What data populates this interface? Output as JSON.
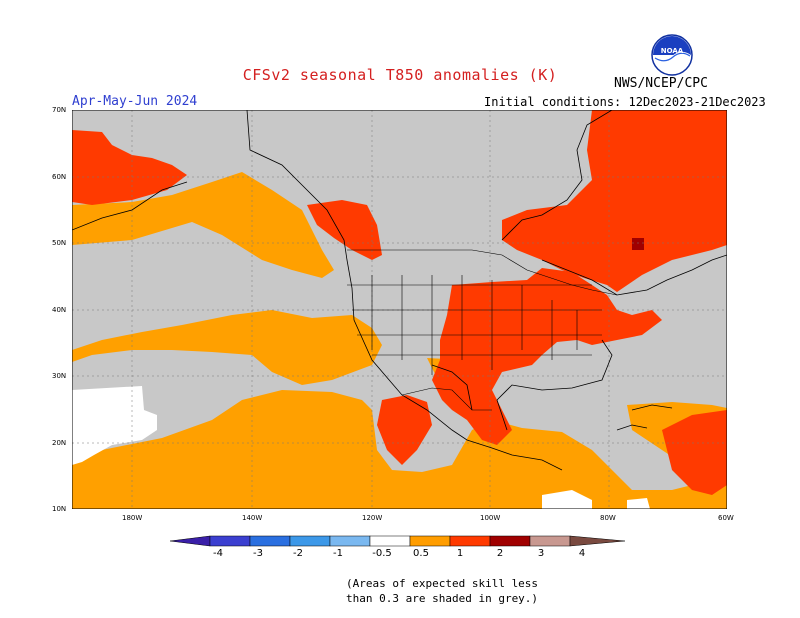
{
  "title": "CFSv2 seasonal T850 anomalies (K)",
  "season": "Apr-May-Jun 2024",
  "initial_conditions": "Initial conditions: 12Dec2023-21Dec2023",
  "agency": "NWS/NCEP/CPC",
  "logo_text": "NOAA",
  "lat_labels": [
    "70N",
    "60N",
    "50N",
    "40N",
    "30N",
    "20N",
    "10N"
  ],
  "lon_labels": [
    "180W",
    "140W",
    "120W",
    "100W",
    "80W",
    "60W"
  ],
  "colorbar": {
    "labels": [
      "-4",
      "-3",
      "-2",
      "-1",
      "-0.5",
      "0.5",
      "1",
      "2",
      "3",
      "4"
    ],
    "colors": [
      "#3a1fa8",
      "#3b3fd0",
      "#2a6fe0",
      "#3c98e8",
      "#7ab8f0",
      "#ffffff",
      "#ff9d00",
      "#ff3a00",
      "#a00000",
      "#c89890",
      "#7a4a40"
    ]
  },
  "note_line1": "(Areas of expected skill less",
  "note_line2": "than 0.3 are shaded in grey.)",
  "map_colors": {
    "grey": "#c8c8c8",
    "orange": "#ffa000",
    "red": "#ff3a00",
    "darkred": "#a00000",
    "white": "#ffffff"
  }
}
